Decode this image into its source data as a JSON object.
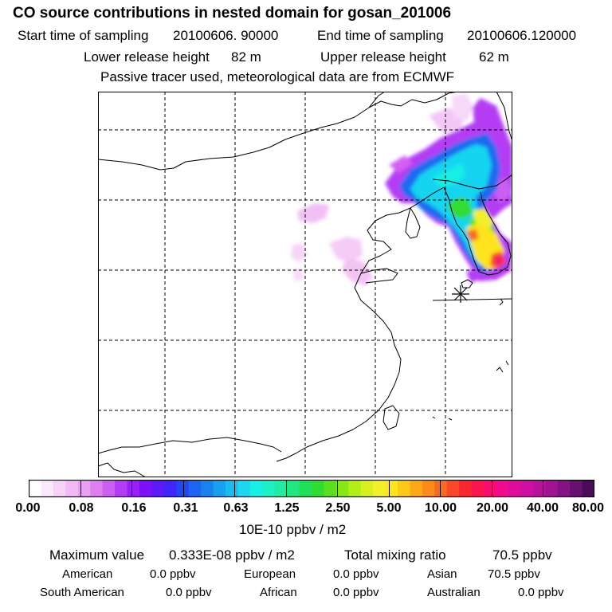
{
  "header": {
    "title": "CO  source contributions in nested domain for gosan_201006",
    "start_label": "Start time of sampling",
    "start_value": "20100606. 90000",
    "end_label": "End time of sampling",
    "end_value": "20100606.120000",
    "lower_label": "Lower release height",
    "lower_value": "82 m",
    "upper_label": "Upper release height",
    "upper_value": "62 m",
    "note": "Passive tracer used, meteorological data are from ECMWF"
  },
  "colorbar": {
    "ticks": [
      "0.00",
      "0.08",
      "0.16",
      "0.31",
      "0.63",
      "1.25",
      "2.50",
      "5.00",
      "10.00",
      "20.00",
      "40.00",
      "80.00"
    ],
    "unit": "10E-10 ppbv / m2",
    "colors": [
      "#ffffff",
      "#fbe8fb",
      "#f7d2f7",
      "#f2baf4",
      "#eaa0f0",
      "#dd7ff0",
      "#cc5ff2",
      "#b43cf4",
      "#9a1ef6",
      "#7d10f7",
      "#5f18f7",
      "#4025f6",
      "#2246f2",
      "#1d64f0",
      "#1a82ee",
      "#18a0ee",
      "#19bcef",
      "#1ed6ef",
      "#18eee6",
      "#1ef0c6",
      "#22eca4",
      "#22e680",
      "#20e05a",
      "#30dc30",
      "#58e020",
      "#86e818",
      "#b2ee18",
      "#d8f020",
      "#f2f02a",
      "#fde41c",
      "#fdc818",
      "#fca818",
      "#fa8a1c",
      "#f86a20",
      "#f84828",
      "#f82830",
      "#fa1450",
      "#f80c72",
      "#ee0c8c",
      "#de0c9c",
      "#cc10a4",
      "#b8129c",
      "#a01492",
      "#841284",
      "#661070",
      "#4a0c56"
    ]
  },
  "summary": {
    "max_label": "Maximum value",
    "max_value": "0.333E-08 ppbv / m2",
    "total_label": "Total mixing ratio",
    "total_value": "70.5 ppbv"
  },
  "regions": [
    {
      "name": "American",
      "value": "0.0 ppbv"
    },
    {
      "name": "European",
      "value": "0.0 ppbv"
    },
    {
      "name": "Asian",
      "value": "70.5 ppbv"
    },
    {
      "name": "South American",
      "value": "0.0 ppbv"
    },
    {
      "name": "African",
      "value": "0.0 ppbv"
    },
    {
      "name": "Australian",
      "value": "0.0 ppbv"
    }
  ]
}
